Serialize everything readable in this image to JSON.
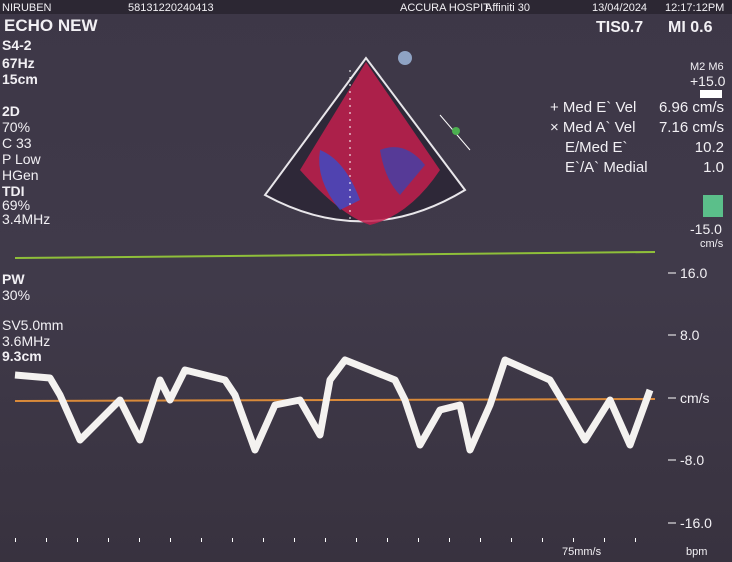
{
  "header": {
    "patient": "NIRUBEN",
    "id": "58131220240413",
    "hospital": "ACCURA HOSPIT",
    "system": "Affiniti 30",
    "date": "13/04/2024",
    "time": "12:17:12PM",
    "preset": "ECHO NEW",
    "tis": "TIS0.7",
    "mi": "MI 0.6"
  },
  "left_panel": {
    "probe": "S4-2",
    "frame_rate": "67Hz",
    "depth": "15cm",
    "mode_2d": "2D",
    "gain_2d": "70%",
    "compress": "C 33",
    "persistence": "P Low",
    "resolution": "HGen",
    "mode_tdi": "TDI",
    "gain_tdi": "69%",
    "freq_tdi": "3.4MHz",
    "mode_pw": "PW",
    "gain_pw": "30%",
    "sample_volume": "SV5.0mm",
    "freq_pw": "3.6MHz",
    "gate_depth": "9.3cm"
  },
  "color_bar": {
    "map": "M2 M6",
    "top": "+15.0",
    "bottom": "-15.0",
    "unit": "cm/s"
  },
  "measurements": {
    "rows": [
      [
        "+ Med E` Vel",
        "6.96 cm/s"
      ],
      [
        "× Med A` Vel",
        "7.16 cm/s"
      ],
      [
        "E/Med E`",
        "10.2"
      ],
      [
        "E`/A` Medial",
        "1.0"
      ]
    ]
  },
  "doppler_scale": {
    "labels": [
      "16.0",
      "8.0",
      "cm/s",
      "-8.0",
      "-16.0"
    ],
    "sweep": "75mm/s",
    "hr_unit": "bpm"
  }
}
